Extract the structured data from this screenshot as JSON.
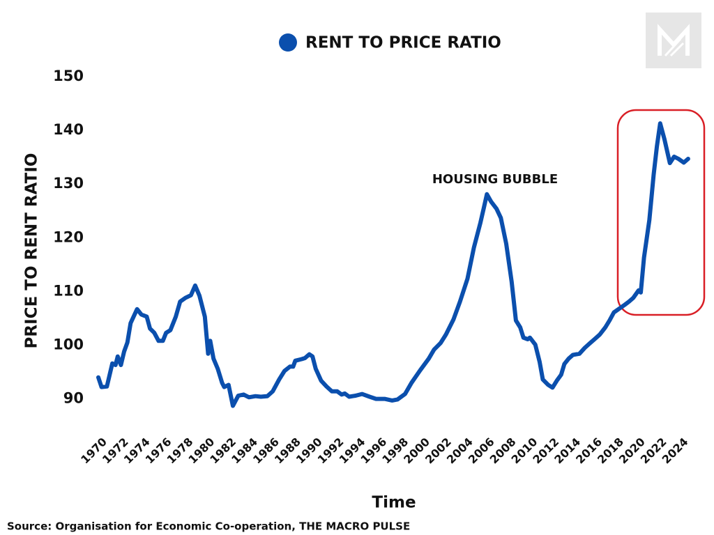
{
  "chart_data": {
    "type": "line",
    "y_label": "PRICE TO RENT RATIO",
    "x_label": "Time",
    "source": "Source:  Organisation for Economic Co-operation, THE MACRO PULSE",
    "annotation": "HOUSING BUBBLE",
    "grid": false,
    "legend": "top",
    "xlim": [
      1970,
      2025
    ],
    "xticks": [
      1970,
      1972,
      1974,
      1976,
      1978,
      1980,
      1982,
      1984,
      1986,
      1988,
      1990,
      1992,
      1994,
      1996,
      1998,
      2000,
      2002,
      2004,
      2006,
      2008,
      2010,
      2012,
      2014,
      2016,
      2018,
      2020,
      2022,
      2024
    ],
    "ylim": [
      88,
      150
    ],
    "yticks": [
      90,
      100,
      110,
      120,
      130,
      140,
      150
    ],
    "x": [
      1970.0,
      1970.3,
      1970.8,
      1971.3,
      1971.6,
      1971.8,
      1972.1,
      1972.4,
      1972.7,
      1973.0,
      1973.6,
      1974.0,
      1974.5,
      1974.8,
      1975.2,
      1975.6,
      1976.0,
      1976.3,
      1976.7,
      1977.2,
      1977.6,
      1978.1,
      1978.6,
      1979.0,
      1979.4,
      1979.9,
      1980.2,
      1980.4,
      1980.7,
      1981.1,
      1981.5,
      1981.7,
      1982.1,
      1982.5,
      1983.0,
      1983.5,
      1984.0,
      1984.6,
      1985.1,
      1985.7,
      1986.2,
      1986.8,
      1987.3,
      1987.8,
      1988.1,
      1988.3,
      1988.9,
      1989.2,
      1989.6,
      1989.9,
      1990.2,
      1990.7,
      1991.2,
      1991.7,
      1992.2,
      1992.6,
      1992.9,
      1993.3,
      1993.9,
      1994.5,
      1995.2,
      1995.8,
      1996.6,
      1997.3,
      1997.8,
      1998.5,
      1999.1,
      1999.9,
      2000.7,
      2001.2,
      2001.8,
      2002.3,
      2003.0,
      2003.6,
      2004.3,
      2004.9,
      2005.5,
      2005.8,
      2006.1,
      2006.5,
      2007.0,
      2007.4,
      2007.9,
      2008.4,
      2008.8,
      2009.2,
      2009.5,
      2009.9,
      2010.1,
      2010.6,
      2011.0,
      2011.3,
      2011.8,
      2012.2,
      2012.6,
      2013.0,
      2013.3,
      2013.7,
      2014.1,
      2014.7,
      2015.2,
      2015.7,
      2016.1,
      2016.6,
      2017.1,
      2017.5,
      2017.9,
      2018.4,
      2018.9,
      2019.3,
      2019.7,
      2020.2,
      2020.4,
      2020.7,
      2021.2,
      2021.6,
      2021.9,
      2022.2,
      2022.6,
      2023.1,
      2023.5,
      2023.9,
      2024.4,
      2024.8
    ],
    "series": [
      {
        "name": "RENT TO PRICE RATIO",
        "color": "#0b4fad",
        "values": [
          94.0,
          92.2,
          92.3,
          96.6,
          96.3,
          97.9,
          96.3,
          98.8,
          100.5,
          104.1,
          106.7,
          105.7,
          105.3,
          103.1,
          102.3,
          100.8,
          100.8,
          102.3,
          102.8,
          105.3,
          108.1,
          108.8,
          109.3,
          111.1,
          109.2,
          105.3,
          98.4,
          100.8,
          97.5,
          95.6,
          93.0,
          92.2,
          92.6,
          88.7,
          90.6,
          90.8,
          90.3,
          90.5,
          90.4,
          90.5,
          91.4,
          93.6,
          95.2,
          96.0,
          96.0,
          97.1,
          97.4,
          97.6,
          98.3,
          97.9,
          95.6,
          93.4,
          92.3,
          91.4,
          91.4,
          90.8,
          91.0,
          90.4,
          90.6,
          90.9,
          90.4,
          90.0,
          90.0,
          89.7,
          89.9,
          90.9,
          93.0,
          95.3,
          97.5,
          99.2,
          100.4,
          102.0,
          104.8,
          108.1,
          112.4,
          118.2,
          122.8,
          125.4,
          128.1,
          126.7,
          125.4,
          123.7,
          118.9,
          111.8,
          104.6,
          103.3,
          101.4,
          101.1,
          101.4,
          100.1,
          96.9,
          93.6,
          92.6,
          92.1,
          93.4,
          94.5,
          96.5,
          97.5,
          98.2,
          98.4,
          99.5,
          100.4,
          101.1,
          102.0,
          103.3,
          104.6,
          106.1,
          106.8,
          107.5,
          108.1,
          108.8,
          110.2,
          109.8,
          116.3,
          123.3,
          131.8,
          137.0,
          141.3,
          138.3,
          133.9,
          135.1,
          134.7,
          134.0,
          134.7
        ]
      }
    ]
  }
}
